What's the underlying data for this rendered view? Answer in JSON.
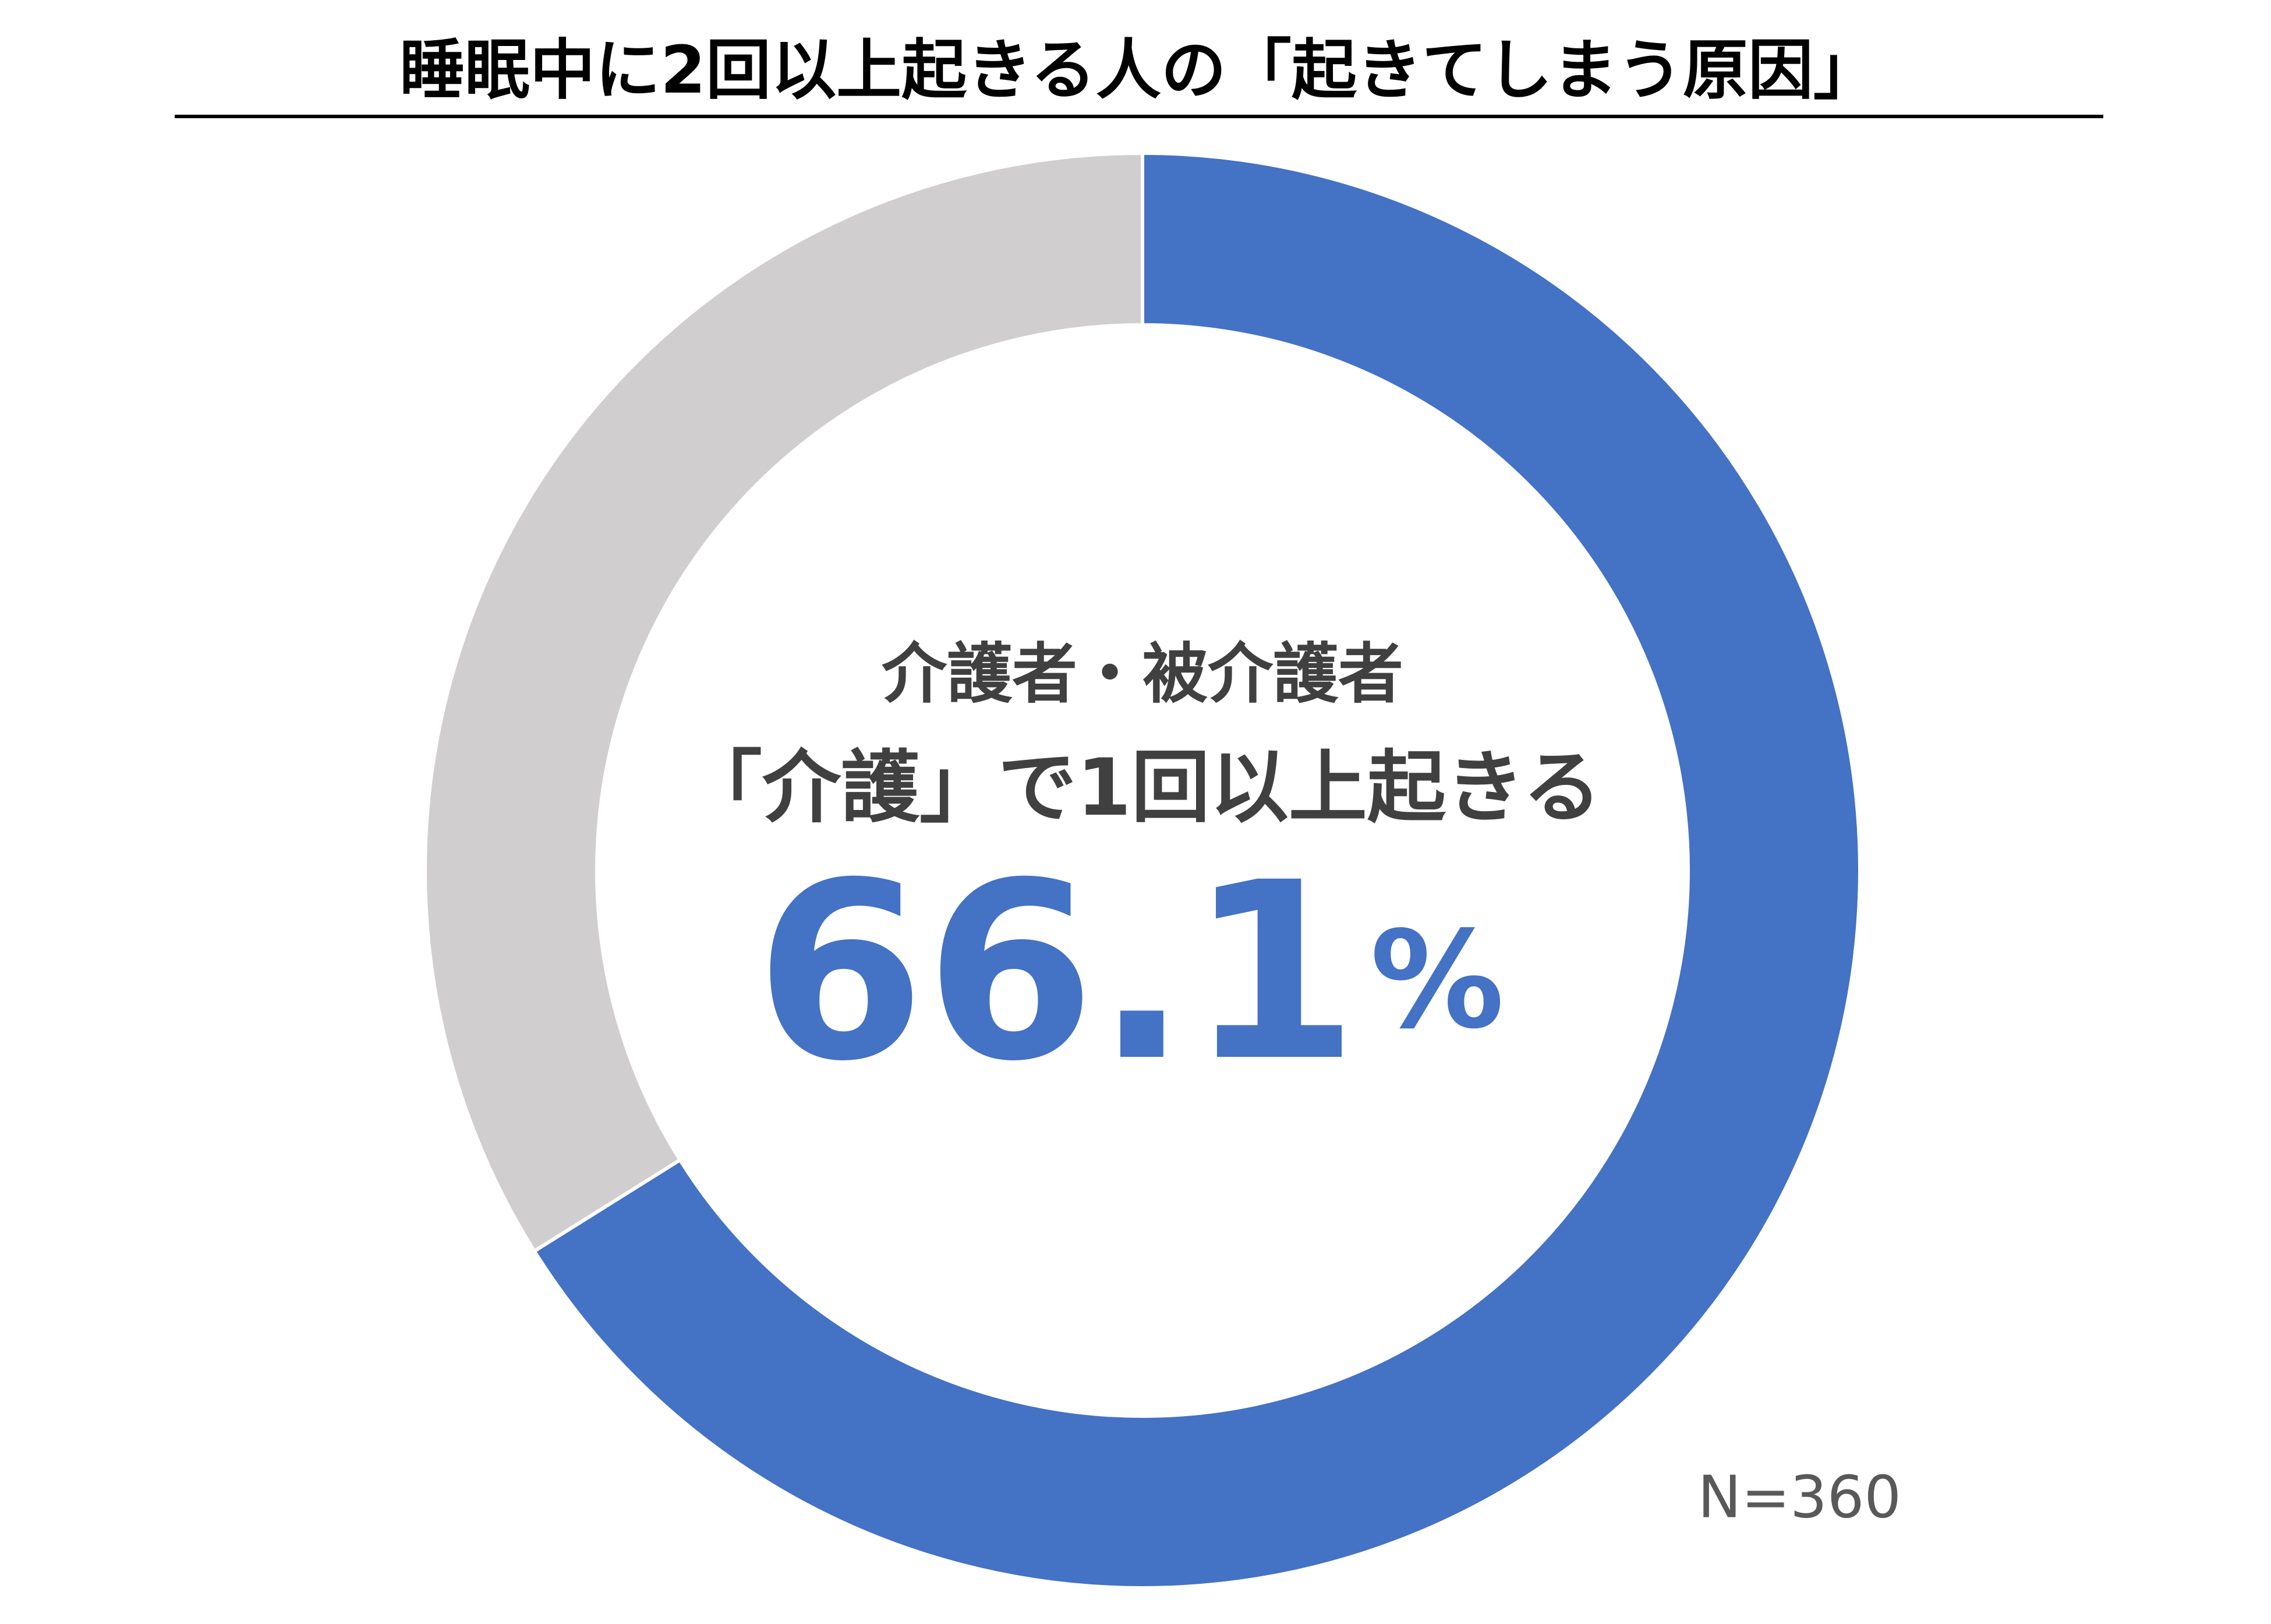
{
  "chart_data": {
    "type": "donut",
    "title": "睡眠中に2回以上起きる人の「起きてしまう原因」",
    "center_text": [
      "介護者・被介護者",
      "「介護」で1回以上起きる"
    ],
    "values": [
      66.1,
      33.9
    ],
    "value_labels": [
      "66.1%",
      null
    ],
    "colors": [
      "#4472c4",
      "#d0cecf"
    ],
    "note": "N=360"
  }
}
